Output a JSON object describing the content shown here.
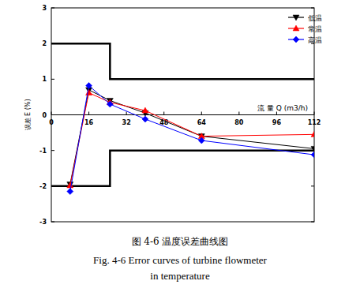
{
  "chart_data": {
    "type": "line",
    "title": "图 4-6 温度误差曲线图",
    "caption": [
      "Fig. 4-6 Error curves of turbine flowmeter",
      "in temperature"
    ],
    "x_label": "流 量 Q (m3/h)",
    "y_label": "误差 E (%)",
    "xlim": [
      0,
      112
    ],
    "ylim": [
      -3,
      3
    ],
    "xticks": [
      0,
      16,
      32,
      48,
      64,
      80,
      96,
      112
    ],
    "yticks": [
      -3,
      -2,
      -1,
      0,
      1,
      2,
      3
    ],
    "grid": false,
    "legend": "upper right",
    "series": [
      {
        "name": "低温",
        "color": "#000000",
        "marker": "triangle-down",
        "line_style": "solid",
        "x": [
          8,
          16,
          25,
          40,
          64,
          112
        ],
        "values": [
          -1.95,
          0.7,
          0.4,
          0.05,
          -0.6,
          -0.95
        ]
      },
      {
        "name": "常温",
        "color": "#ff0000",
        "marker": "triangle",
        "line_style": "solid",
        "x": [
          8,
          16,
          25,
          40,
          64,
          112
        ],
        "values": [
          -1.98,
          0.62,
          0.35,
          0.12,
          -0.6,
          -0.55
        ]
      },
      {
        "name": "高温",
        "color": "#0000ff",
        "marker": "diamond",
        "line_style": "solid",
        "x": [
          8,
          16,
          25,
          40,
          64,
          112
        ],
        "values": [
          -2.15,
          0.82,
          0.3,
          -0.12,
          -0.72,
          -1.12
        ]
      }
    ],
    "limit_lines": [
      {
        "color": "#000000",
        "x": [
          0,
          25,
          25,
          112
        ],
        "values": [
          2,
          2,
          1,
          1
        ]
      },
      {
        "color": "#000000",
        "x": [
          0,
          25,
          25,
          112
        ],
        "values": [
          -2,
          -2,
          -1,
          -1
        ]
      }
    ]
  }
}
